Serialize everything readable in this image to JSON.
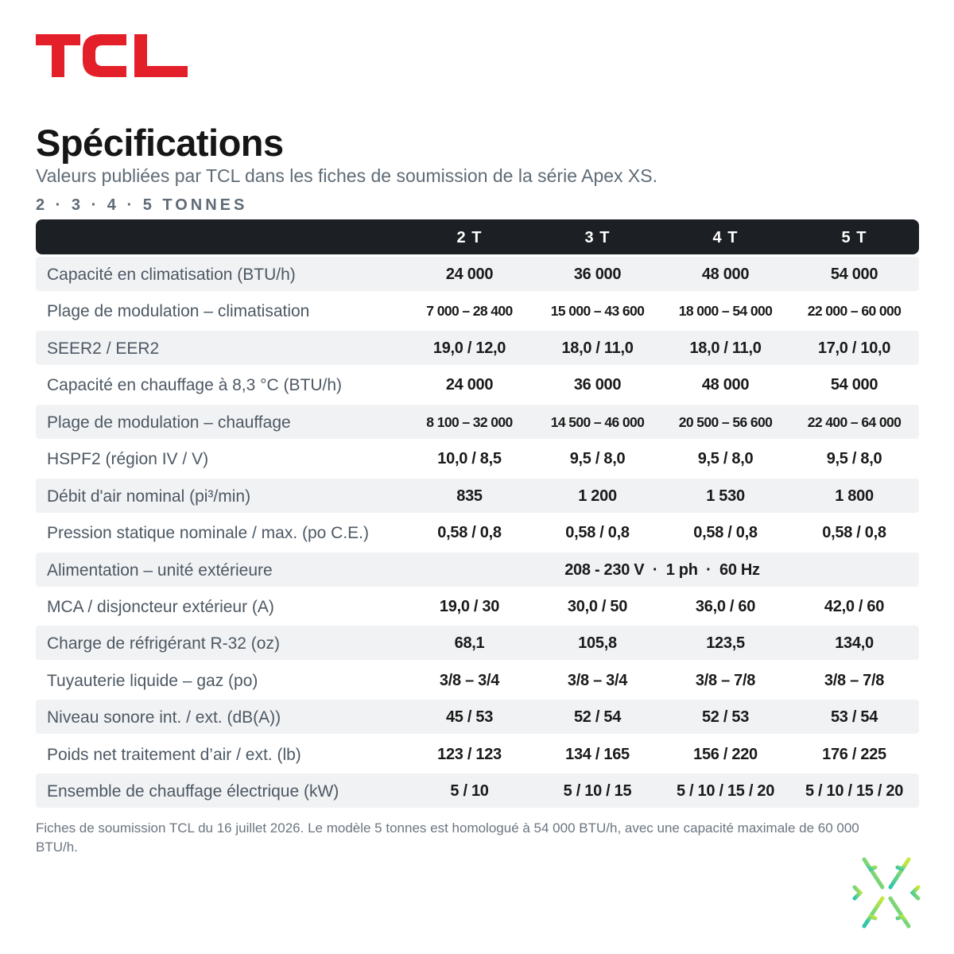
{
  "brand": {
    "logo_text": "TCL",
    "logo_color": "#e3202a"
  },
  "header": {
    "title": "Spécifications",
    "subtitle": "Valeurs publiées par TCL dans les fiches de soumission de la série Apex XS.",
    "sizes_line": "2 · 3 · 4 · 5 TONNES"
  },
  "table": {
    "columns": [
      "2 T",
      "3 T",
      "4 T",
      "5 T"
    ],
    "rows": [
      {
        "label": "Capacité en climatisation (BTU/h)",
        "values": [
          "24 000",
          "36 000",
          "48 000",
          "54 000"
        ]
      },
      {
        "label": "Plage de modulation – climatisation",
        "values": [
          "7 000 – 28 400",
          "15 000 – 43 600",
          "18 000 – 54 000",
          "22 000 – 60 000"
        ]
      },
      {
        "label": "SEER2 / EER2",
        "values": [
          "19,0 / 12,0",
          "18,0 / 11,0",
          "18,0 / 11,0",
          "17,0 / 10,0"
        ]
      },
      {
        "label": "Capacité en chauffage à 8,3 °C (BTU/h)",
        "values": [
          "24 000",
          "36 000",
          "48 000",
          "54 000"
        ]
      },
      {
        "label": "Plage de modulation – chauffage",
        "values": [
          "8 100 – 32 000",
          "14 500 – 46 000",
          "20 500 – 56 600",
          "22 400 – 64 000"
        ]
      },
      {
        "label": "HSPF2 (région IV / V)",
        "values": [
          "10,0 / 8,5",
          "9,5 / 8,0",
          "9,5 / 8,0",
          "9,5 / 8,0"
        ]
      },
      {
        "label": "Débit d'air nominal (pi³/min)",
        "values": [
          "835",
          "1 200",
          "1 530",
          "1 800"
        ]
      },
      {
        "label": "Pression statique nominale / max. (po C.E.)",
        "values": [
          "0,58 / 0,8",
          "0,58 / 0,8",
          "0,58 / 0,8",
          "0,58 / 0,8"
        ]
      },
      {
        "label": "Alimentation – unité extérieure",
        "span_value": "208 - 230 V  ·  1 ph  ·  60 Hz"
      },
      {
        "label": "MCA / disjoncteur extérieur (A)",
        "values": [
          "19,0 / 30",
          "30,0 / 50",
          "36,0 / 60",
          "42,0 / 60"
        ]
      },
      {
        "label": "Charge de réfrigérant R-32 (oz)",
        "values": [
          "68,1",
          "105,8",
          "123,5",
          "134,0"
        ]
      },
      {
        "label": "Tuyauterie liquide – gaz (po)",
        "values": [
          "3/8 – 3/4",
          "3/8 – 3/4",
          "3/8 – 7/8",
          "3/8 – 7/8"
        ]
      },
      {
        "label": "Niveau sonore int. / ext. (dB(A))",
        "values": [
          "45 / 53",
          "52 / 54",
          "52 / 53",
          "53 / 54"
        ]
      },
      {
        "label": "Poids net traitement d’air / ext. (lb)",
        "values": [
          "123 / 123",
          "134 / 165",
          "156 / 220",
          "176 / 225"
        ]
      },
      {
        "label": "Ensemble de chauffage électrique (kW)",
        "values": [
          "5 / 10",
          "5 / 10 / 15",
          "5 / 10 / 15 / 20",
          "5 / 10 / 15 / 20"
        ]
      }
    ]
  },
  "footnote": "Fiches de soumission TCL du 16 juillet 2026. Le modèle 5 tonnes est homologué à 54 000 BTU/h, avec une capacité maximale de 60 000 BTU/h.",
  "decor": {
    "snowflake_icon": "snowflake-icon",
    "snowflake_colors": [
      "#2ec4b0",
      "#c9e83a"
    ]
  }
}
